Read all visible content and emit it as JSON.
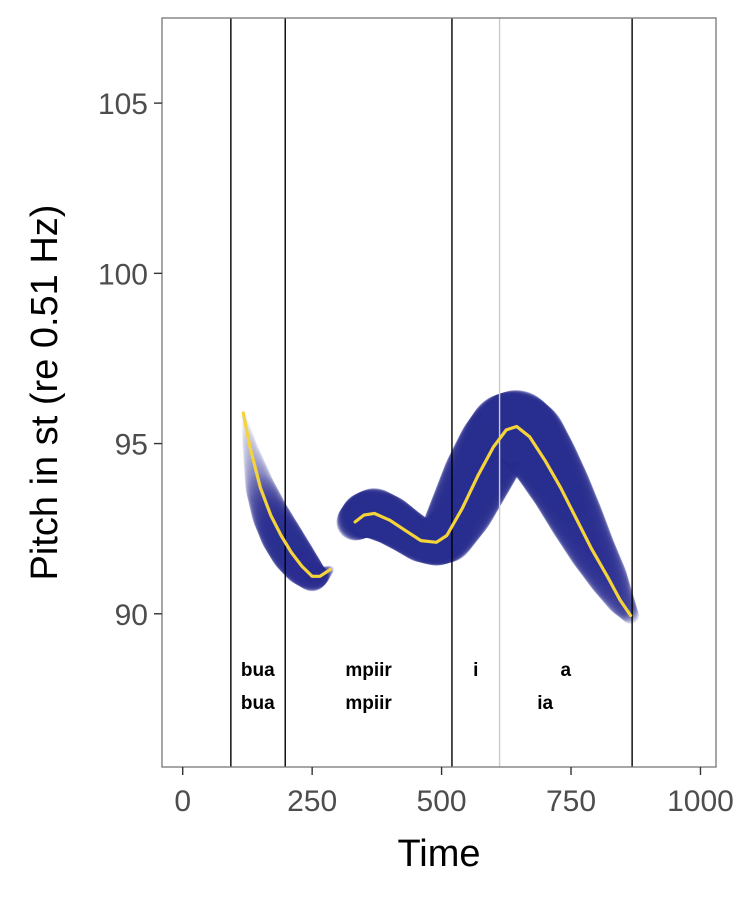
{
  "chart_data": {
    "type": "line",
    "xlabel": "Time",
    "ylabel": "Pitch in st (re 0.51 Hz)",
    "xlim": [
      -40,
      1030
    ],
    "ylim": [
      85.5,
      107.5
    ],
    "x_ticks": [
      0,
      250,
      500,
      750,
      1000
    ],
    "x_tick_labels": [
      "0",
      "250",
      "500",
      "750",
      "1000"
    ],
    "y_ticks": [
      90,
      95,
      100,
      105
    ],
    "y_tick_labels": [
      "90",
      "95",
      "100",
      "105"
    ],
    "grid": false,
    "boundaries": [
      {
        "x": 93,
        "color": "#000000"
      },
      {
        "x": 198,
        "color": "#000000"
      },
      {
        "x": 520,
        "color": "#000000"
      },
      {
        "x": 612,
        "color": "#cccccc"
      },
      {
        "x": 868,
        "color": "#000000"
      }
    ],
    "segment_labels": [
      {
        "text": "bua",
        "x": 145,
        "row": 1
      },
      {
        "text": "mpiir",
        "x": 359,
        "row": 1
      },
      {
        "text": "i",
        "x": 566,
        "row": 1
      },
      {
        "text": "a",
        "x": 740,
        "row": 1
      },
      {
        "text": "bua",
        "x": 145,
        "row": 2
      },
      {
        "text": "mpiir",
        "x": 359,
        "row": 2
      },
      {
        "text": "ia",
        "x": 700,
        "row": 2
      }
    ],
    "series": [
      {
        "values": [
          {
            "x": 117,
            "y": 95.9
          },
          {
            "x": 130,
            "y": 94.9
          },
          {
            "x": 150,
            "y": 93.7
          },
          {
            "x": 170,
            "y": 92.9
          },
          {
            "x": 190,
            "y": 92.3
          },
          {
            "x": 210,
            "y": 91.8
          },
          {
            "x": 230,
            "y": 91.4
          },
          {
            "x": 250,
            "y": 91.1
          },
          {
            "x": 265,
            "y": 91.1
          },
          {
            "x": 285,
            "y": 91.3
          }
        ],
        "band_width": [
          0.1,
          0.4,
          0.8,
          1.0,
          1.1,
          1.1,
          1.0,
          0.8,
          0.5,
          0.2
        ],
        "band_opacity": [
          0.15,
          0.3,
          0.5,
          0.7,
          0.85,
          0.85,
          0.85,
          0.8,
          0.6,
          0.4
        ]
      },
      {
        "values": [
          {
            "x": 333,
            "y": 92.7
          },
          {
            "x": 350,
            "y": 92.9
          },
          {
            "x": 370,
            "y": 92.95
          },
          {
            "x": 400,
            "y": 92.75
          },
          {
            "x": 430,
            "y": 92.45
          },
          {
            "x": 460,
            "y": 92.15
          },
          {
            "x": 490,
            "y": 92.1
          },
          {
            "x": 510,
            "y": 92.3
          },
          {
            "x": 540,
            "y": 93.1
          },
          {
            "x": 570,
            "y": 94.05
          },
          {
            "x": 600,
            "y": 94.9
          },
          {
            "x": 625,
            "y": 95.4
          },
          {
            "x": 645,
            "y": 95.5
          },
          {
            "x": 670,
            "y": 95.2
          },
          {
            "x": 700,
            "y": 94.5
          },
          {
            "x": 730,
            "y": 93.7
          },
          {
            "x": 760,
            "y": 92.8
          },
          {
            "x": 790,
            "y": 91.9
          },
          {
            "x": 820,
            "y": 91.1
          },
          {
            "x": 845,
            "y": 90.4
          },
          {
            "x": 865,
            "y": 89.95
          }
        ],
        "band_width": [
          1.0,
          1.2,
          1.35,
          1.3,
          1.2,
          1.15,
          1.25,
          1.45,
          1.7,
          1.85,
          1.9,
          1.95,
          1.95,
          1.9,
          1.75,
          1.6,
          1.45,
          1.25,
          1.05,
          0.75,
          0.45
        ],
        "band_opacity": [
          0.9,
          0.9,
          0.9,
          0.9,
          0.9,
          0.9,
          0.9,
          0.9,
          0.9,
          0.9,
          0.9,
          0.9,
          0.9,
          0.9,
          0.9,
          0.9,
          0.9,
          0.85,
          0.75,
          0.6,
          0.45
        ]
      }
    ],
    "colors": {
      "band": "#2b2e91",
      "mean_line": "#f5d33b",
      "panel_border": "#7f7f7f",
      "background": "#ffffff"
    }
  }
}
